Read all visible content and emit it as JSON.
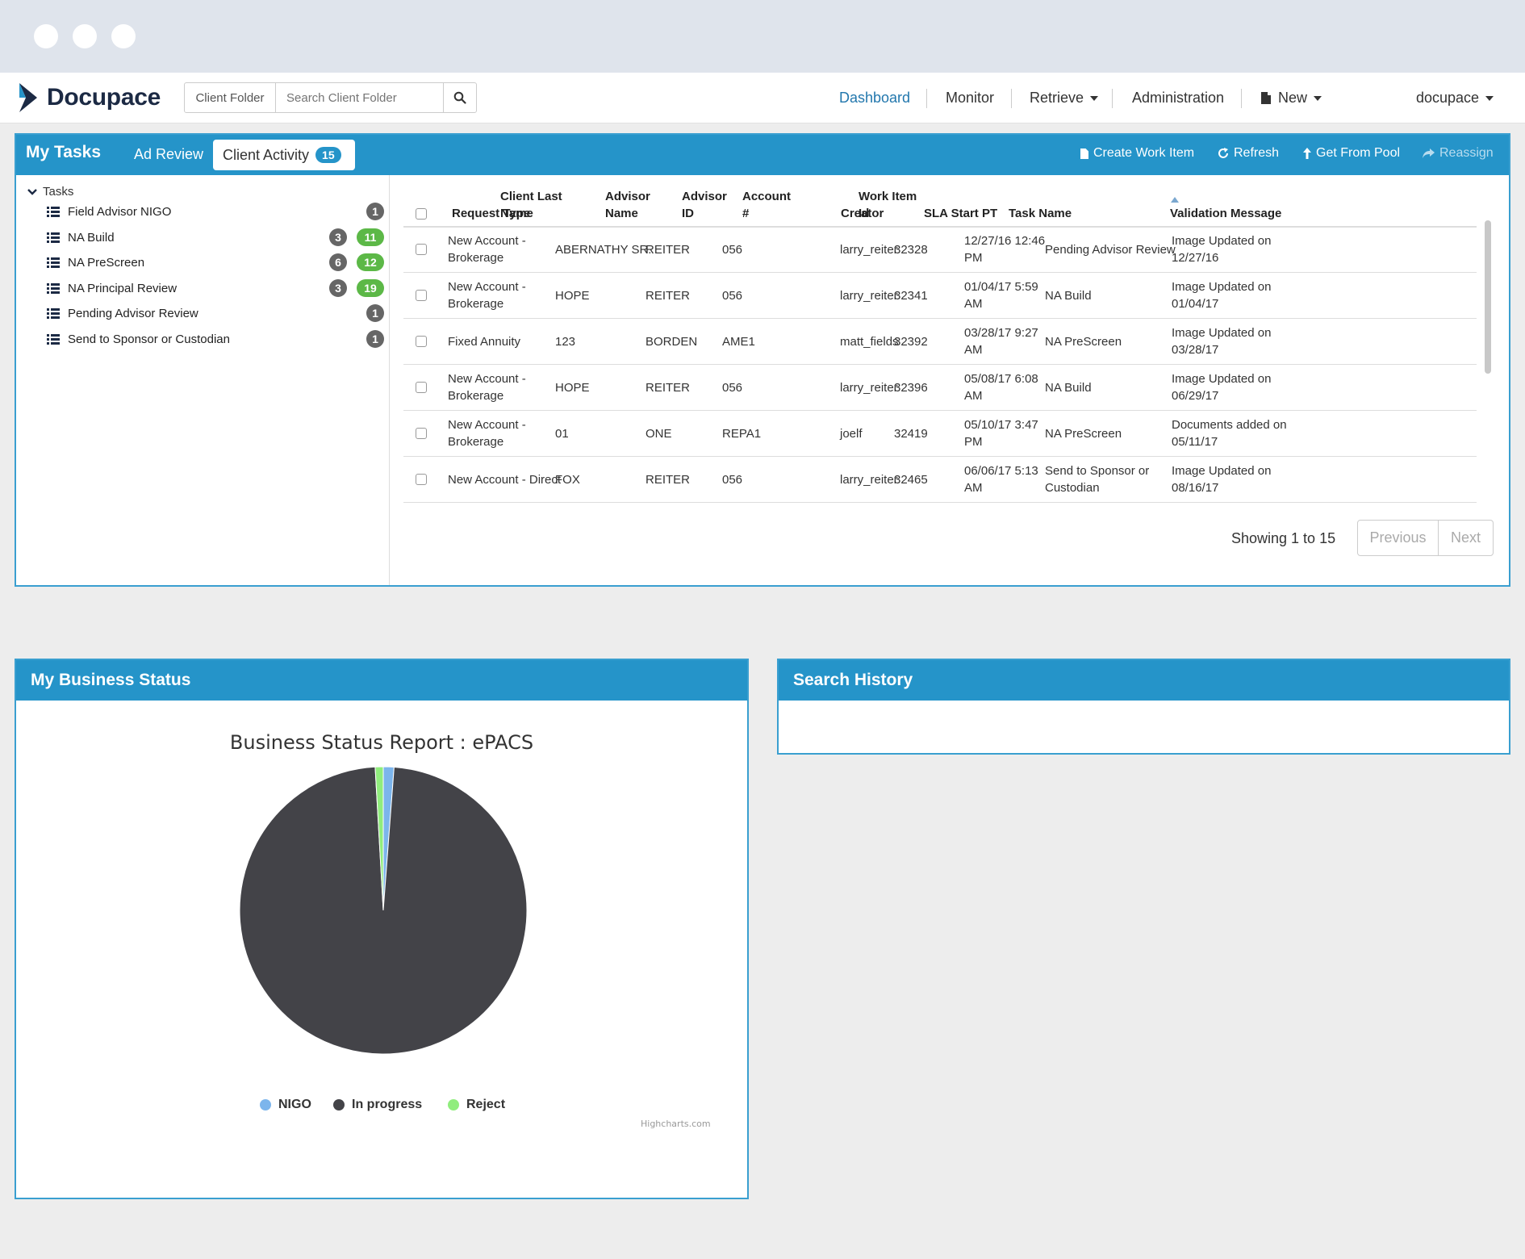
{
  "navbar": {
    "brand": "Docupace",
    "client_folder_label": "Client Folder",
    "search_placeholder": "Search Client Folder",
    "items": [
      "Dashboard",
      "Monitor",
      "Retrieve",
      "Administration",
      "New"
    ],
    "user": "docupace"
  },
  "tasks_panel": {
    "title": "My Tasks",
    "tabs": [
      "Ad Review",
      "Client Activity"
    ],
    "client_activity_count": "15",
    "actions": [
      "Create Work Item",
      "Refresh",
      "Get From Pool",
      "Reassign"
    ],
    "tree_root": "Tasks",
    "tree_items": [
      {
        "label": "Field Advisor NIGO",
        "counts": [
          "1"
        ]
      },
      {
        "label": "NA Build",
        "counts": [
          "3",
          "11"
        ]
      },
      {
        "label": "NA PreScreen",
        "counts": [
          "6",
          "12"
        ]
      },
      {
        "label": "NA Principal Review",
        "counts": [
          "3",
          "19"
        ]
      },
      {
        "label": "Pending Advisor Review",
        "counts": [
          "1"
        ]
      },
      {
        "label": "Send to Sponsor or Custodian",
        "counts": [
          "1"
        ]
      }
    ],
    "columns": [
      [
        "Request Type"
      ],
      [
        "Client Last",
        "Name"
      ],
      [
        "Advisor",
        "Name"
      ],
      [
        "Advisor",
        "ID"
      ],
      [
        "Account",
        "#"
      ],
      [
        "Creator"
      ],
      [
        "Work Item",
        "Id"
      ],
      [
        "SLA Start PT"
      ],
      [
        "Task Name"
      ],
      [
        "Validation Message"
      ]
    ],
    "rows": [
      [
        [
          "New Account -",
          "Brokerage"
        ],
        [
          "ABERNATHY SR."
        ],
        [
          "REITER"
        ],
        [
          "056"
        ],
        [
          ""
        ],
        [
          "larry_reiter"
        ],
        [
          "32328"
        ],
        [
          "12/27/16 12:46",
          "PM"
        ],
        [
          "Pending Advisor Review"
        ],
        [
          "Image Updated on",
          "12/27/16"
        ]
      ],
      [
        [
          "New Account -",
          "Brokerage"
        ],
        [
          "HOPE"
        ],
        [
          "REITER"
        ],
        [
          "056"
        ],
        [
          ""
        ],
        [
          "larry_reiter"
        ],
        [
          "32341"
        ],
        [
          "01/04/17 5:59",
          "AM"
        ],
        [
          "NA Build"
        ],
        [
          "Image Updated on",
          "01/04/17"
        ]
      ],
      [
        [
          "Fixed Annuity"
        ],
        [
          "123"
        ],
        [
          "BORDEN"
        ],
        [
          "AME1"
        ],
        [
          ""
        ],
        [
          "matt_fields"
        ],
        [
          "32392"
        ],
        [
          "03/28/17 9:27",
          "AM"
        ],
        [
          "NA PreScreen"
        ],
        [
          "Image Updated on",
          "03/28/17"
        ]
      ],
      [
        [
          "New Account -",
          "Brokerage"
        ],
        [
          "HOPE"
        ],
        [
          "REITER"
        ],
        [
          "056"
        ],
        [
          ""
        ],
        [
          "larry_reiter"
        ],
        [
          "32396"
        ],
        [
          "05/08/17 6:08",
          "AM"
        ],
        [
          "NA Build"
        ],
        [
          "Image Updated on",
          "06/29/17"
        ]
      ],
      [
        [
          "New Account -",
          "Brokerage"
        ],
        [
          "01"
        ],
        [
          "ONE"
        ],
        [
          "REPA1"
        ],
        [
          ""
        ],
        [
          "joelf"
        ],
        [
          "32419"
        ],
        [
          "05/10/17 3:47",
          "PM"
        ],
        [
          "NA PreScreen"
        ],
        [
          "Documents added on",
          "05/11/17"
        ]
      ],
      [
        [
          "New Account - Direct"
        ],
        [
          "FOX"
        ],
        [
          "REITER"
        ],
        [
          "056"
        ],
        [
          ""
        ],
        [
          "larry_reiter"
        ],
        [
          "32465"
        ],
        [
          "06/06/17 5:13",
          "AM"
        ],
        [
          "Send to Sponsor or",
          "Custodian"
        ],
        [
          "Image Updated on",
          "08/16/17"
        ]
      ]
    ],
    "showing": "Showing 1 to 15",
    "prev": "Previous",
    "next": "Next"
  },
  "business_status": {
    "title": "My Business Status",
    "chart_data": {
      "type": "pie",
      "title": "Business Status Report : ePACS",
      "categories": [
        "NIGO",
        "In progress",
        "Reject"
      ],
      "values": [
        1.2,
        97.9,
        0.9
      ],
      "colors": [
        "#7cb5ec",
        "#434348",
        "#90ed7d"
      ],
      "legend": "bottom",
      "credit": "Highcharts.com"
    }
  },
  "search_history": {
    "title": "Search History"
  }
}
